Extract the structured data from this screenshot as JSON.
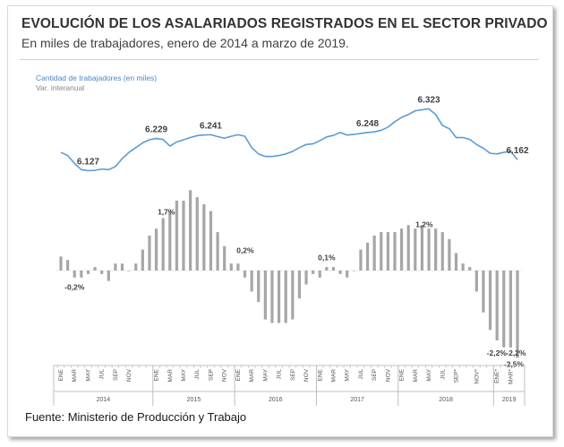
{
  "title": "EVOLUCIÓN DE LOS ASALARIADOS REGISTRADOS EN EL SECTOR PRIVADO",
  "subtitle": "En miles de trabajadores, enero de 2014 a marzo de 2019.",
  "source": "Fuente: Ministerio de Producción y Trabajo",
  "colors": {
    "line": "#5b9bd5",
    "bar": "#a6a6a6",
    "axis": "#bfbfbf"
  },
  "chart_data": {
    "type": "line+bar",
    "series": [
      {
        "name": "Cantidad de trabajadores (en miles)",
        "type": "line",
        "values": [
          6185,
          6175,
          6150,
          6130,
          6127,
          6128,
          6132,
          6130,
          6140,
          6165,
          6185,
          6200,
          6215,
          6225,
          6229,
          6226,
          6205,
          6218,
          6225,
          6232,
          6238,
          6240,
          6241,
          6235,
          6230,
          6236,
          6241,
          6236,
          6200,
          6180,
          6172,
          6172,
          6175,
          6180,
          6188,
          6200,
          6210,
          6212,
          6222,
          6234,
          6239,
          6248,
          6240,
          6242,
          6245,
          6248,
          6250,
          6255,
          6265,
          6282,
          6296,
          6305,
          6317,
          6320,
          6323,
          6305,
          6270,
          6260,
          6232,
          6232,
          6226,
          6210,
          6198,
          6182,
          6180,
          6185,
          6188,
          6162
        ],
        "annotations": [
          {
            "index": 4,
            "label": "6.127"
          },
          {
            "index": 14,
            "label": "6.229"
          },
          {
            "index": 22,
            "label": "6.241"
          },
          {
            "index": 45,
            "label": "6.248"
          },
          {
            "index": 54,
            "label": "6.323"
          },
          {
            "index": 67,
            "label": "6.162"
          }
        ]
      },
      {
        "name": "Var. interanual",
        "type": "bar",
        "unit": "%",
        "values": [
          0.4,
          0.3,
          -0.2,
          -0.2,
          -0.1,
          0.1,
          -0.1,
          -0.3,
          0.2,
          0.2,
          0.0,
          0.2,
          0.6,
          1.0,
          1.2,
          1.5,
          1.7,
          2.0,
          2.0,
          2.3,
          2.1,
          1.9,
          1.7,
          1.1,
          0.7,
          0.2,
          0.2,
          -0.2,
          -0.6,
          -0.9,
          -1.4,
          -1.5,
          -1.5,
          -1.5,
          -1.4,
          -0.8,
          -0.4,
          -0.1,
          -0.2,
          0.1,
          0.1,
          -0.1,
          -0.2,
          0.0,
          0.6,
          0.8,
          1.0,
          1.1,
          1.1,
          1.1,
          1.2,
          1.3,
          1.2,
          1.3,
          1.2,
          1.2,
          1.1,
          0.9,
          0.5,
          0.2,
          0.1,
          -0.6,
          -1.2,
          -1.7,
          -2.0,
          -2.2,
          -2.2,
          -2.5
        ],
        "annotations": [
          {
            "index": 2,
            "label": "-0,2%"
          },
          {
            "index": 16,
            "label": "1,7%"
          },
          {
            "index": 26,
            "label": "0,2%"
          },
          {
            "index": 39,
            "label": "0,1%"
          },
          {
            "index": 52,
            "label": "1,2%"
          },
          {
            "index": 65,
            "label": "-2,2%"
          },
          {
            "index": 66,
            "label": "-2,2%"
          },
          {
            "index": 67,
            "label": "-2,5%"
          }
        ]
      }
    ],
    "legend": [
      "Cantidad de trabajadores (en miles)",
      "Var. interanual"
    ],
    "ylim_line": [
      6100,
      6350
    ],
    "ylim_bar": [
      -2.5,
      2.3
    ],
    "month_ticks": [
      {
        "index": 0,
        "label": "ENE"
      },
      {
        "index": 2,
        "label": "MAR"
      },
      {
        "index": 4,
        "label": "MAY"
      },
      {
        "index": 6,
        "label": "JUL"
      },
      {
        "index": 8,
        "label": "SEP"
      },
      {
        "index": 10,
        "label": "NOV"
      },
      {
        "index": 14,
        "label": "ENE"
      },
      {
        "index": 16,
        "label": "MAR"
      },
      {
        "index": 18,
        "label": "MAY"
      },
      {
        "index": 20,
        "label": "JUL"
      },
      {
        "index": 22,
        "label": "SEP"
      },
      {
        "index": 24,
        "label": "NOV"
      },
      {
        "index": 26,
        "label": "ENE"
      },
      {
        "index": 28,
        "label": "MAR"
      },
      {
        "index": 30,
        "label": "MAY"
      },
      {
        "index": 32,
        "label": "JUL"
      },
      {
        "index": 34,
        "label": "SEP"
      },
      {
        "index": 36,
        "label": "NOV"
      },
      {
        "index": 38,
        "label": "ENE"
      },
      {
        "index": 40,
        "label": "MAR"
      },
      {
        "index": 42,
        "label": "MAY"
      },
      {
        "index": 44,
        "label": "JUL"
      },
      {
        "index": 46,
        "label": "SEP"
      },
      {
        "index": 48,
        "label": "NOV"
      },
      {
        "index": 50,
        "label": "ENE"
      },
      {
        "index": 52,
        "label": "MAR"
      },
      {
        "index": 54,
        "label": "MAY"
      },
      {
        "index": 56,
        "label": "JUL"
      },
      {
        "index": 58,
        "label": "SEP*"
      },
      {
        "index": 61,
        "label": "NOV*"
      },
      {
        "index": 64,
        "label": "ENE*"
      },
      {
        "index": 66,
        "label": "MAR*"
      }
    ],
    "year_groups": [
      {
        "label": "2014",
        "start": 0,
        "end": 13
      },
      {
        "label": "2015",
        "start": 14,
        "end": 25
      },
      {
        "label": "2016",
        "start": 26,
        "end": 37
      },
      {
        "label": "2017",
        "start": 38,
        "end": 49
      },
      {
        "label": "2018",
        "start": 50,
        "end": 63
      },
      {
        "label": "2019",
        "start": 64,
        "end": 67
      }
    ]
  }
}
